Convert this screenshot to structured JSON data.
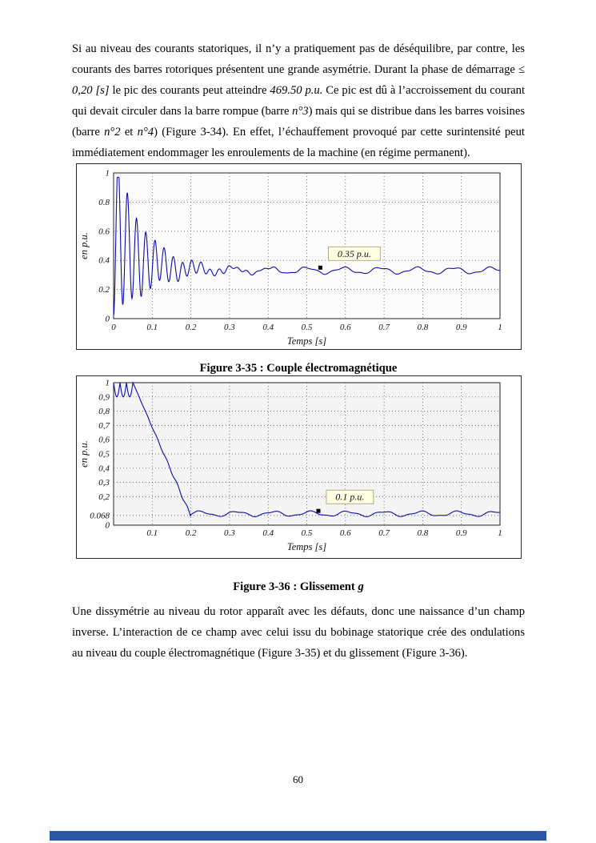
{
  "page": {
    "number": "60",
    "footer_bar_color": "#2a57a5",
    "background": "#ffffff"
  },
  "paragraphs": {
    "intro_segments": [
      {
        "t": "Si au niveau des courants statoriques, il n’y a pratiquement pas de déséquilibre, par contre, les courants des barres rotoriques présentent une grande asymétrie. Durant la phase de démarrage ≤ ",
        "i": false
      },
      {
        "t": "0,20 [s]",
        "i": true
      },
      {
        "t": " le pic des courants peut atteindre ",
        "i": false
      },
      {
        "t": "469.50 p.u.",
        "i": true
      },
      {
        "t": " Ce pic est dû à l’accroissement du courant qui devait circuler dans la barre rompue (barre ",
        "i": false
      },
      {
        "t": "n°3",
        "i": true
      },
      {
        "t": ")  mais qui se distribue dans les barres voisines (barre ",
        "i": false
      },
      {
        "t": "n°2",
        "i": true
      },
      {
        "t": " et ",
        "i": false
      },
      {
        "t": "n°4",
        "i": true
      },
      {
        "t": ") (Figure 3-34). En effet, l’échauffement provoqué par cette surintensité peut immédiatement endommager les enroulements de la machine (en régime permanent).",
        "i": false
      }
    ],
    "outro": "Une dissymétrie au niveau du rotor apparaît avec les défauts, donc une naissance d’un champ inverse. L’interaction de ce champ avec celui issu du bobinage statorique crée des ondulations au niveau du couple électromagnétique (Figure 3-35) et du glissement (Figure 3-36)."
  },
  "chart_data": [
    {
      "type": "line",
      "caption": "Figure 3-35 : Couple électromagnétique",
      "xlabel": "Temps [s]",
      "ylabel": "en p.u.",
      "xlim": [
        0,
        1
      ],
      "ylim": [
        0,
        1
      ],
      "x_ticks": [
        0,
        0.1,
        0.2,
        0.3,
        0.4,
        0.5,
        0.6,
        0.7,
        0.8,
        0.9,
        1
      ],
      "x_tick_labels": [
        "0",
        "0.1",
        "0.2",
        "0.3",
        "0.4",
        "0.5",
        "0.6",
        "0.7",
        "0.8",
        "0.9",
        "1"
      ],
      "y_ticks": [
        0,
        0.2,
        0.4,
        0.6,
        0.8,
        1
      ],
      "y_tick_labels": [
        "0",
        "0.2",
        "0.4",
        "0.6",
        "0.8",
        "1"
      ],
      "grid": "dotted",
      "legend": "none",
      "line_color": "#0b0bb0",
      "plot_bg": "#fcfcfc",
      "annotation": {
        "text": "0.35 p.u.",
        "marker_x": 0.535,
        "marker_y": 0.35,
        "box_bg": "#ffffe4"
      },
      "signal": {
        "kind": "decaying-oscillation",
        "description": "Couple électromagnétique : fortes oscillations amorties au démarrage (pic ≈ 0.97 p.u. vers t ≈ 0.01 s) jusqu’à t ≈ 0.2 s, puis régime permanent ondulé autour de 0.33–0.35 p.u.",
        "start_value": 0,
        "peak_value": 0.97,
        "transient_end_s": 0.2,
        "steady_mean": 0.33,
        "marked_value": 0.35,
        "mean_overshoot": 0.27,
        "mean_tau_s": 0.06,
        "osc_amplitude": 0.58,
        "osc_tau_s": 0.08,
        "oscillation_hz": 42,
        "ripple_amplitude": 0.02,
        "ripple_hz": 10.5,
        "ripple2_amplitude": 0.006,
        "ripple2_hz": 27
      }
    },
    {
      "type": "line",
      "caption": "Figure 3-36 : Glissement g",
      "caption_segments": [
        {
          "t": "Figure 3-36 : Glissement ",
          "i": false
        },
        {
          "t": "g",
          "i": true
        }
      ],
      "xlabel": "Temps [s]",
      "ylabel": "en p.u.",
      "xlim": [
        0,
        1
      ],
      "ylim": [
        0,
        1
      ],
      "x_ticks": [
        0.1,
        0.2,
        0.3,
        0.4,
        0.5,
        0.6,
        0.7,
        0.8,
        0.9,
        1
      ],
      "x_tick_labels": [
        "0.1",
        "0.2",
        "0.3",
        "0.4",
        "0.5",
        "0.6",
        "0.7",
        "0.8",
        "0.9",
        "1"
      ],
      "y_ticks": [
        0,
        0.068,
        0.2,
        0.3,
        0.4,
        0.5,
        0.6,
        0.7,
        0.8,
        0.9,
        1
      ],
      "y_tick_labels": [
        "0",
        "0.068",
        "0,2",
        "0,3",
        "0,4",
        "0,5",
        "0,6",
        "0,7",
        "0,8",
        "0,9",
        "1"
      ],
      "grid": "dotted",
      "legend": "none",
      "line_color": "#0b0bb0",
      "plot_bg": "#f4f4f4",
      "annotation": {
        "text": "0.1 p.u.",
        "marker_x": 0.53,
        "marker_y": 0.1,
        "box_bg": "#ffffe4"
      },
      "signal": {
        "kind": "startup-slip",
        "description": "Glissement g : vaut 1 au démarrage (t < 0.05 s) avec petites encoches, décroît quasi linéairement jusqu’à ≈ 0.068 vers t ≈ 0.2 s, puis ondule autour de 0.068–0.1 p.u.",
        "start_value": 1,
        "jitter_end_s": 0.05,
        "jitter_depth": 0.1,
        "jitter_hz": 30,
        "settle_s": 0.2,
        "settle_value": 0.062,
        "descent_wiggle_amplitude": 0.012,
        "descent_wiggle_hz": 38,
        "steady_mean": 0.08,
        "marked_value": 0.1,
        "ripple_amplitude": 0.016,
        "ripple_hz": 10.5,
        "ripple2_amplitude": 0.005,
        "ripple2_hz": 24
      }
    }
  ]
}
